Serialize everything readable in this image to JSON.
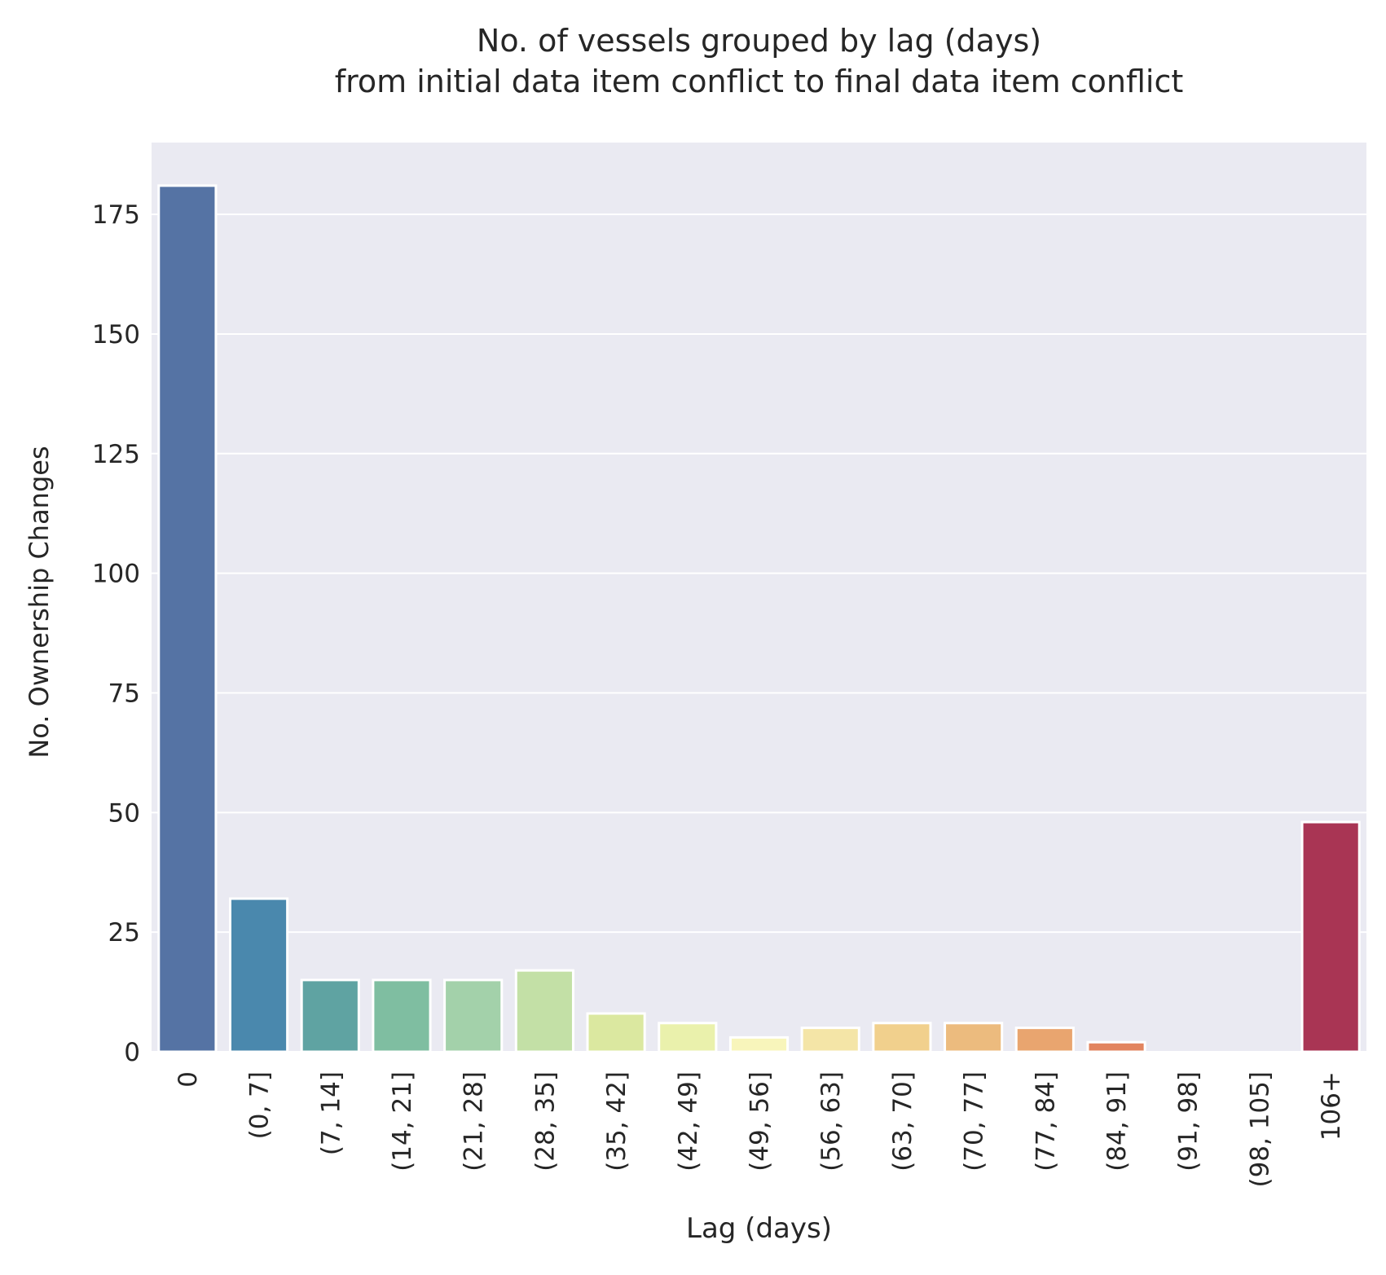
{
  "chart_data": {
    "type": "bar",
    "title": [
      "No. of vessels grouped by lag (days)",
      "from initial data item conflict to final data item conflict"
    ],
    "xlabel": "Lag (days)",
    "ylabel": "No. Ownership Changes",
    "categories": [
      "0",
      "(0, 7]",
      "(7, 14]",
      "(14, 21]",
      "(21, 28]",
      "(28, 35]",
      "(35, 42]",
      "(42, 49]",
      "(49, 56]",
      "(56, 63]",
      "(63, 70]",
      "(70, 77]",
      "(77, 84]",
      "(84, 91]",
      "(91, 98]",
      "(98, 105]",
      "106+"
    ],
    "values": [
      181,
      32,
      15,
      15,
      15,
      17,
      8,
      6,
      3,
      5,
      6,
      6,
      5,
      2,
      0,
      0,
      48
    ],
    "colors": [
      "#5573a4",
      "#4a88ad",
      "#5fa3a2",
      "#7fbea1",
      "#a3d1aa",
      "#c3e0a6",
      "#dbe8a0",
      "#eaf1ac",
      "#f8f5bb",
      "#f4e5a7",
      "#f1d08d",
      "#ecbb7e",
      "#e9a56f",
      "#e2845f",
      "#d8645a",
      "#c44455",
      "#a93554"
    ],
    "yticks": [
      0,
      25,
      50,
      75,
      100,
      125,
      150,
      175
    ],
    "ylim": [
      0,
      190
    ],
    "grid": true
  }
}
